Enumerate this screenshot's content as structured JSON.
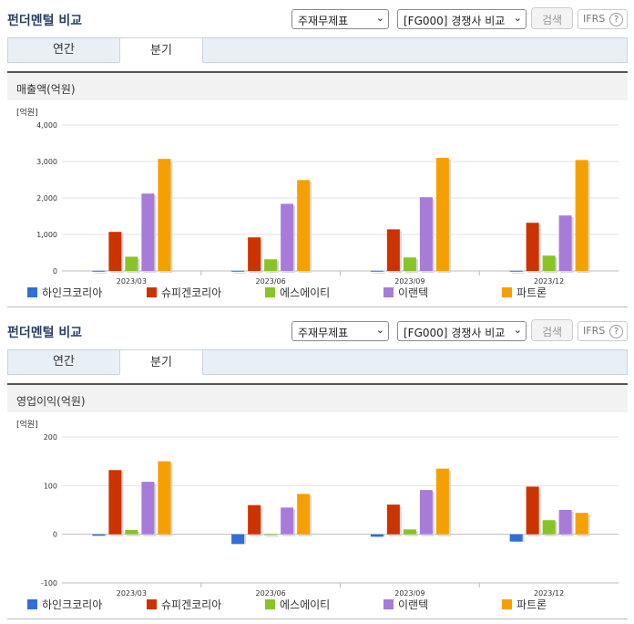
{
  "sections": [
    {
      "title": "펀더멘털 비교",
      "select1": "주재무제표",
      "select2": "[FG000] 경쟁사 비교",
      "search_label": "검색",
      "ifrs_label": "IFRS",
      "help": "?",
      "tabs": [
        {
          "label": "연간",
          "active": false
        },
        {
          "label": "분기",
          "active": true
        }
      ],
      "metric": "매출액(억원)"
    },
    {
      "title": "펀더멘털 비교",
      "select1": "주재무제표",
      "select2": "[FG000] 경쟁사 비교",
      "search_label": "검색",
      "ifrs_label": "IFRS",
      "help": "?",
      "tabs": [
        {
          "label": "연간",
          "active": false
        },
        {
          "label": "분기",
          "active": true
        }
      ],
      "metric": "영업이익(억원)"
    }
  ],
  "legend_colors": [
    "#2f6fd8",
    "#cc3300",
    "#88c425",
    "#a87bd9",
    "#f5a000"
  ],
  "chart_data": [
    {
      "type": "bar",
      "title": "매출액(억원)",
      "unit_label": "[억원]",
      "categories": [
        "2023/03",
        "2023/06",
        "2023/09",
        "2023/12"
      ],
      "ylim": [
        0,
        4000
      ],
      "yticks": [
        "0",
        "1,000",
        "2,000",
        "3,000",
        "4,000"
      ],
      "ytick_values": [
        0,
        1000,
        2000,
        3000,
        4000
      ],
      "grid": true,
      "series": [
        {
          "name": "하인크코리아",
          "values": [
            5,
            5,
            5,
            5
          ]
        },
        {
          "name": "슈피겐코리아",
          "values": [
            1070,
            920,
            1140,
            1320
          ]
        },
        {
          "name": "에스에이티",
          "values": [
            390,
            320,
            370,
            420
          ]
        },
        {
          "name": "이랜텍",
          "values": [
            2120,
            1840,
            2020,
            1520
          ]
        },
        {
          "name": "파트론",
          "values": [
            3070,
            2490,
            3100,
            3040
          ]
        }
      ]
    },
    {
      "type": "bar",
      "title": "영업이익(억원)",
      "unit_label": "[억원]",
      "categories": [
        "2023/03",
        "2023/06",
        "2023/09",
        "2023/12"
      ],
      "ylim": [
        -100,
        200
      ],
      "yticks": [
        "-100",
        "0",
        "100",
        "200"
      ],
      "ytick_values": [
        -100,
        0,
        100,
        200
      ],
      "grid": true,
      "series": [
        {
          "name": "하인크코리아",
          "values": [
            -3,
            -20,
            -5,
            -15
          ]
        },
        {
          "name": "슈피겐코리아",
          "values": [
            132,
            60,
            61,
            98
          ]
        },
        {
          "name": "에스에이티",
          "values": [
            9,
            0,
            10,
            29
          ]
        },
        {
          "name": "이랜텍",
          "values": [
            108,
            55,
            91,
            50
          ]
        },
        {
          "name": "파트론",
          "values": [
            150,
            83,
            135,
            44
          ]
        }
      ]
    }
  ]
}
